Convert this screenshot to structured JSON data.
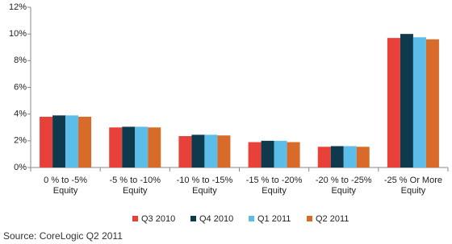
{
  "chart_data": {
    "type": "bar",
    "source": "Source: CoreLogic Q2 2011",
    "categories": [
      [
        "0 % to -5%",
        "Equity"
      ],
      [
        "-5 % to -10%",
        "Equity"
      ],
      [
        "-10 % to -15%",
        "Equity"
      ],
      [
        "-15 % to -20%",
        "Equity"
      ],
      [
        "-20 % to -25%",
        "Equity"
      ],
      [
        "-25 % Or More",
        "Equity"
      ]
    ],
    "series": [
      {
        "name": "Q3 2010",
        "color": "#e8413a",
        "values": [
          3.8,
          3.0,
          2.35,
          1.9,
          1.55,
          9.7
        ]
      },
      {
        "name": "Q4 2010",
        "color": "#0f3a4e",
        "values": [
          3.9,
          3.05,
          2.45,
          2.0,
          1.6,
          10.0
        ]
      },
      {
        "name": "Q1 2011",
        "color": "#5cbde8",
        "values": [
          3.9,
          3.05,
          2.45,
          2.0,
          1.6,
          9.75
        ]
      },
      {
        "name": "Q2 2011",
        "color": "#d86b2a",
        "values": [
          3.8,
          3.0,
          2.4,
          1.9,
          1.55,
          9.6
        ]
      }
    ],
    "ylim": [
      0,
      12
    ],
    "yticks": [
      {
        "value": 0,
        "label": "0%"
      },
      {
        "value": 2,
        "label": "2%"
      },
      {
        "value": 4,
        "label": "4%"
      },
      {
        "value": 6,
        "label": "6%"
      },
      {
        "value": 8,
        "label": "8%"
      },
      {
        "value": 10,
        "label": "10%"
      },
      {
        "value": 12,
        "label": "12%"
      }
    ],
    "grid": false
  }
}
